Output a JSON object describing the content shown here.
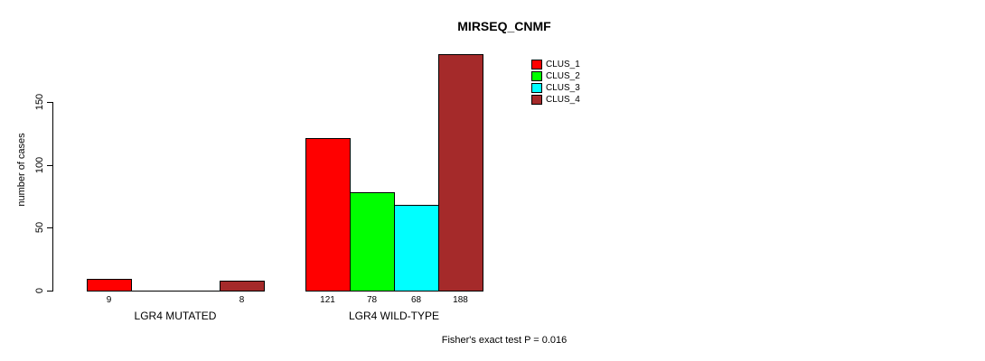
{
  "chart_data": {
    "type": "bar",
    "title": "MIRSEQ_CNMF",
    "ylabel": "number of cases",
    "xlabel": "",
    "yticks": [
      0,
      50,
      100,
      150
    ],
    "ylim": [
      0,
      150
    ],
    "grid": false,
    "legend_position": "top-right",
    "categories": [
      "LGR4 MUTATED",
      "LGR4 WILD-TYPE"
    ],
    "series": [
      {
        "name": "CLUS_1",
        "color": "#FF0000",
        "values": [
          9,
          121
        ]
      },
      {
        "name": "CLUS_2",
        "color": "#00FF00",
        "values": [
          0,
          78
        ]
      },
      {
        "name": "CLUS_3",
        "color": "#00FFFF",
        "values": [
          0,
          68
        ]
      },
      {
        "name": "CLUS_4",
        "color": "#A52A2A",
        "values": [
          8,
          188
        ]
      }
    ],
    "groups": [
      {
        "label": "LGR4 MUTATED",
        "values": [
          9,
          0,
          0,
          8
        ],
        "bar_labels": [
          "9",
          null,
          null,
          "8"
        ]
      },
      {
        "label": "LGR4 WILD-TYPE",
        "values": [
          121,
          78,
          68,
          188
        ],
        "bar_labels": [
          "121",
          "78",
          "68",
          "188"
        ]
      }
    ],
    "annotation": "Fisher's exact test P = 0.016"
  },
  "colors": {
    "background": "#FFFFFF",
    "axis": "#000000",
    "text": "#000000"
  }
}
